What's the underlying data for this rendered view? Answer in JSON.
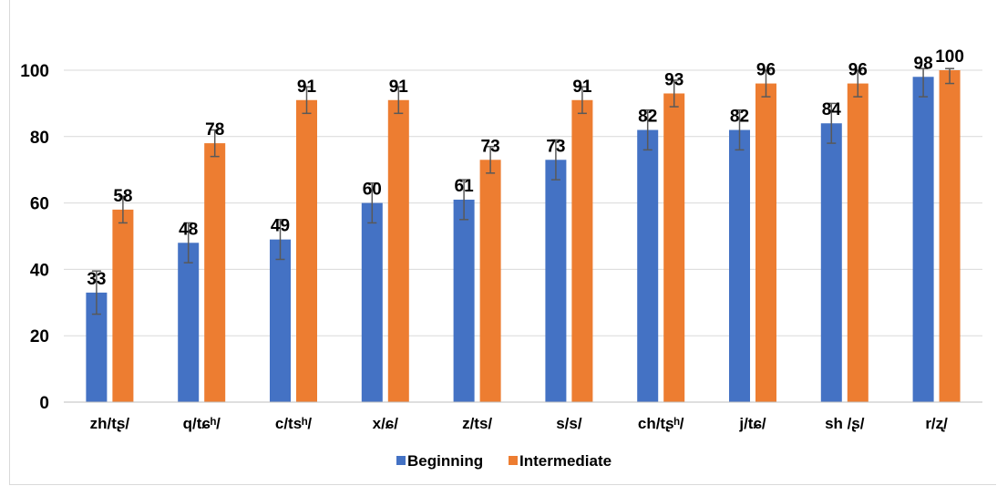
{
  "chart_data": {
    "type": "bar",
    "title": "",
    "xlabel": "",
    "ylabel": "",
    "ylim": [
      0,
      100
    ],
    "yticks": [
      0,
      20,
      40,
      60,
      80,
      100
    ],
    "grid": true,
    "legend_position": "bottom",
    "categories": [
      "zh/tʂ/",
      "q/tɕʰ/",
      "c/tsʰ/",
      "x/ɕ/",
      "z/ts/",
      "s/s/",
      "ch/tʂʰ/",
      "j/tɕ/",
      "sh /ʂ/",
      "r/ʐ/"
    ],
    "series": [
      {
        "name": "Beginning",
        "color": "#4472c4",
        "values": [
          33,
          48,
          49,
          60,
          61,
          73,
          82,
          82,
          84,
          98
        ],
        "labels": [
          "33",
          "48",
          "49",
          "60",
          "61",
          "73",
          "82",
          "82",
          "84",
          "98"
        ],
        "error": [
          6.5,
          6,
          6,
          6,
          6,
          6,
          6,
          6,
          6,
          6
        ]
      },
      {
        "name": "Intermediate",
        "color": "#ed7d31",
        "values": [
          58,
          78,
          91,
          91,
          73,
          91,
          93,
          96,
          96,
          100
        ],
        "labels": [
          "58",
          "78",
          "91",
          "91",
          "73",
          "91",
          "93",
          "96",
          "96",
          "100"
        ],
        "error": [
          4,
          4,
          4,
          4,
          4,
          4,
          4,
          4,
          4,
          4
        ]
      }
    ]
  }
}
